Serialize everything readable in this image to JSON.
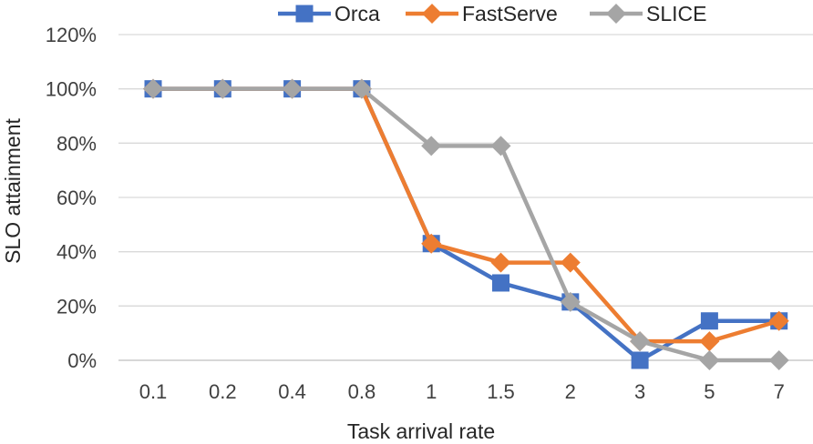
{
  "chart_data": {
    "type": "line",
    "title": "",
    "xlabel": "Task arrival rate",
    "ylabel": "SLO attainment",
    "categories": [
      "0.1",
      "0.2",
      "0.4",
      "0.8",
      "1",
      "1.5",
      "2",
      "3",
      "5",
      "7"
    ],
    "ylim": [
      0,
      120
    ],
    "yticks": [
      "0%",
      "20%",
      "40%",
      "60%",
      "80%",
      "100%",
      "120%"
    ],
    "ytick_values": [
      0,
      20,
      40,
      60,
      80,
      100,
      120
    ],
    "grid": true,
    "legend_position": "top",
    "series": [
      {
        "name": "Orca",
        "color": "#4472C4",
        "marker": "square",
        "values": [
          100,
          100,
          100,
          100,
          43,
          28.5,
          21.5,
          0,
          14.5,
          14.5
        ]
      },
      {
        "name": "FastServe",
        "color": "#ED7D31",
        "marker": "diamond",
        "values": [
          100,
          100,
          100,
          100,
          43,
          36,
          36,
          7,
          7,
          14.5
        ]
      },
      {
        "name": "SLICE",
        "color": "#A5A5A5",
        "marker": "diamond",
        "values": [
          100,
          100,
          100,
          100,
          79,
          79,
          21.5,
          7,
          0,
          0
        ]
      }
    ]
  }
}
